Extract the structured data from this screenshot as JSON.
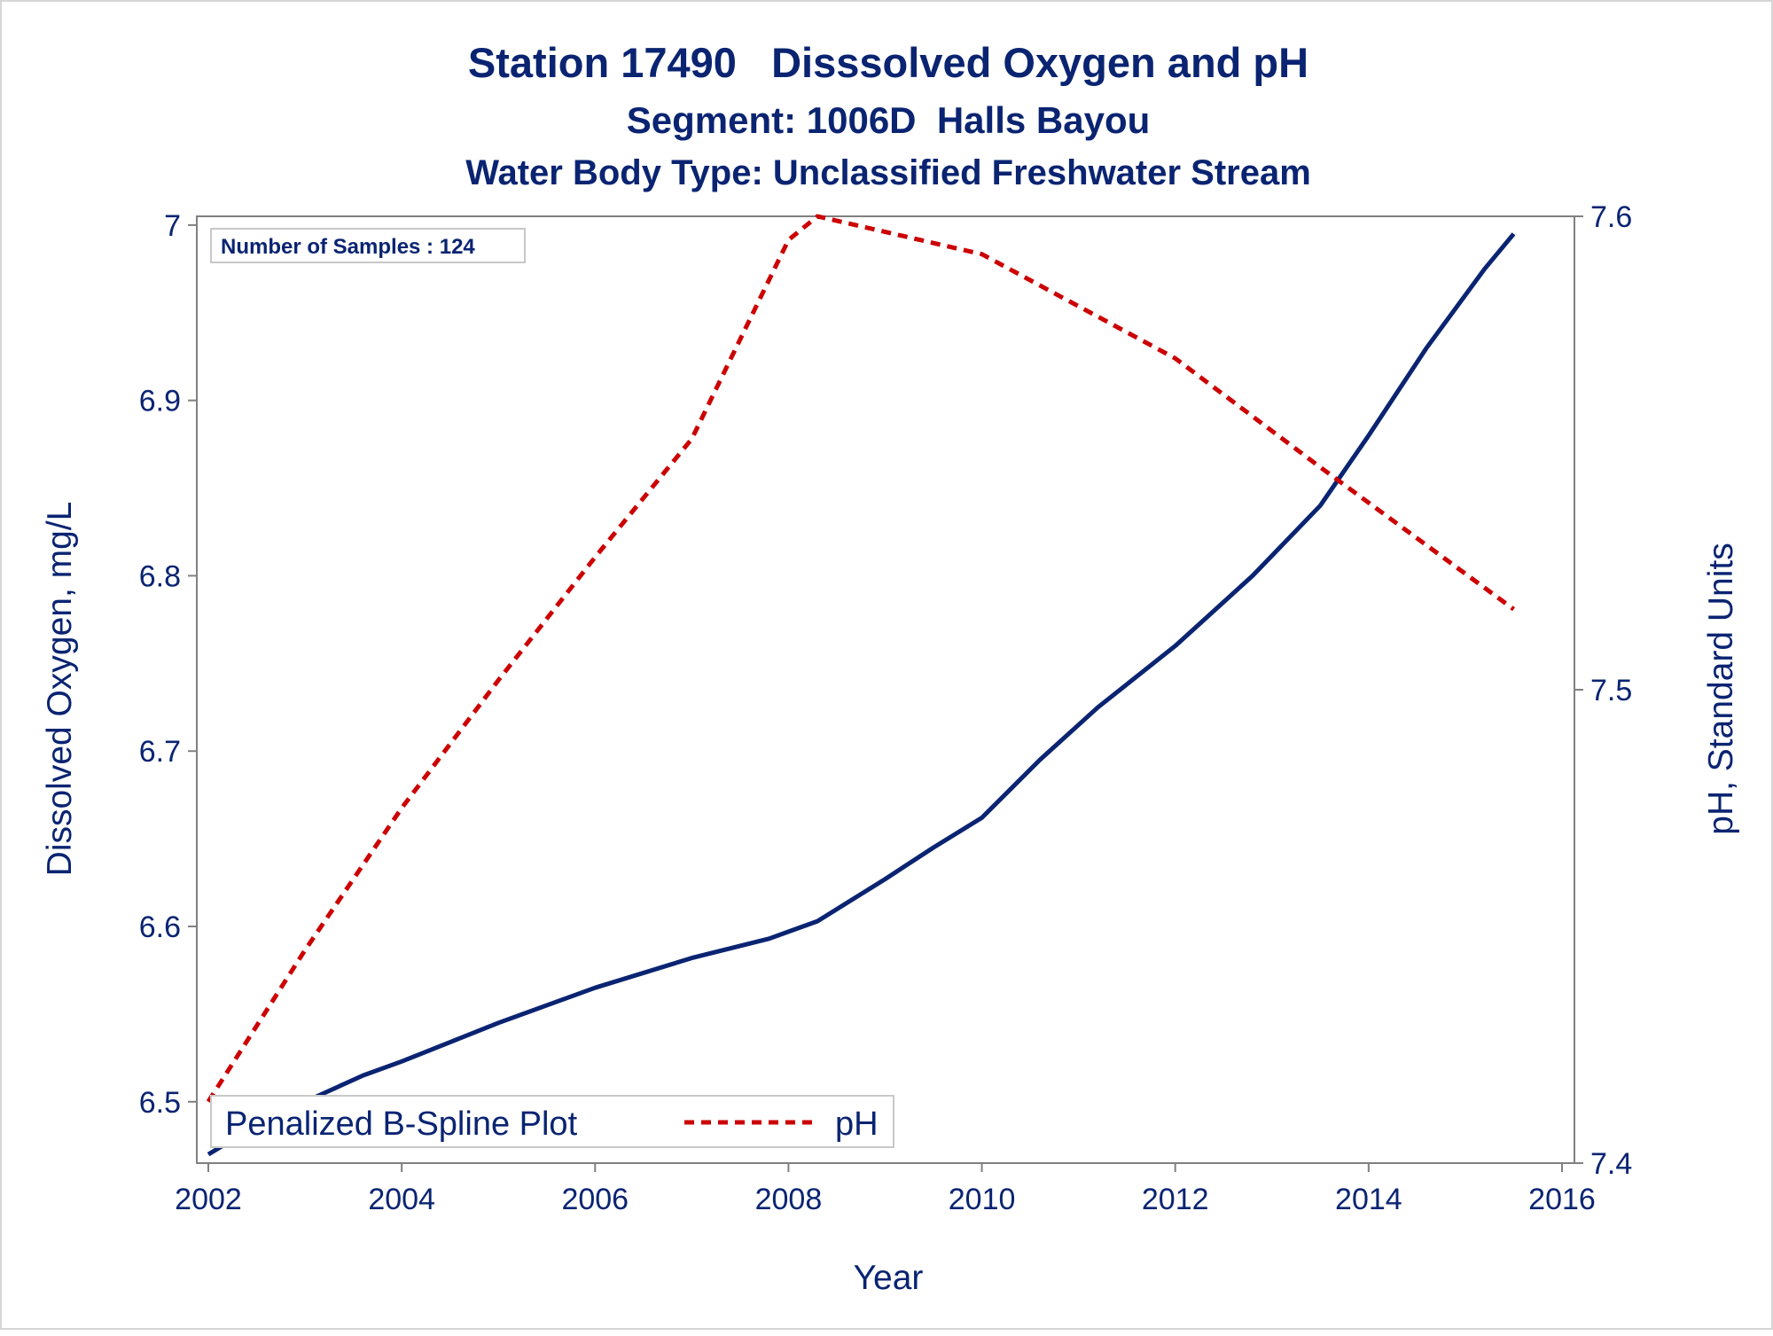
{
  "chart_data": {
    "type": "line",
    "title": "Station 17490   Disssolved Oxygen and pH",
    "subtitle": "Segment: 1006D  Halls Bayou",
    "subtitle2": "Water Body Type: Unclassified Freshwater Stream",
    "xlabel": "Year",
    "ylabel_left": "Dissolved Oxygen, mg/L",
    "ylabel_right": "pH, Standard Units",
    "xlim": [
      2002,
      2016
    ],
    "ylim_left": [
      6.465,
      7.005
    ],
    "ylim_right": [
      7.4,
      7.6
    ],
    "x_ticks": [
      "2002",
      "2004",
      "2006",
      "2008",
      "2010",
      "2012",
      "2014",
      "2016"
    ],
    "y_left_ticks": [
      "6.5",
      "6.6",
      "6.7",
      "6.8",
      "6.9",
      "7"
    ],
    "y_right_ticks": [
      "7.4",
      "7.5",
      "7.6"
    ],
    "grid": false,
    "inset_label": "Number of Samples : 124",
    "legend": {
      "position": "bottom-left",
      "title": "Penalized B-Spline Plot",
      "entries": [
        "pH"
      ]
    },
    "series": [
      {
        "name": "Dissolved Oxygen",
        "axis": "left",
        "color": "#0a2472",
        "style": "solid",
        "x": [
          2002.0,
          2002.6,
          2003.2,
          2003.6,
          2004.0,
          2005.0,
          2006.0,
          2007.0,
          2007.8,
          2008.3,
          2009.0,
          2009.5,
          2010.0,
          2010.6,
          2011.2,
          2012.0,
          2012.8,
          2013.5,
          2014.0,
          2014.6,
          2015.2,
          2015.5
        ],
        "values": [
          6.47,
          6.49,
          6.505,
          6.515,
          6.523,
          6.545,
          6.565,
          6.582,
          6.593,
          6.603,
          6.627,
          6.645,
          6.662,
          6.695,
          6.725,
          6.76,
          6.8,
          6.84,
          6.88,
          6.93,
          6.975,
          6.995
        ]
      },
      {
        "name": "pH",
        "axis": "right",
        "color": "#cc0000",
        "style": "dashed",
        "x": [
          2002.0,
          2003.0,
          2004.0,
          2005.0,
          2006.0,
          2007.0,
          2008.0,
          2008.3,
          2010.0,
          2012.0,
          2013.5,
          2015.5
        ],
        "values": [
          7.413,
          7.445,
          7.475,
          7.502,
          7.528,
          7.553,
          7.595,
          7.6,
          7.592,
          7.57,
          7.547,
          7.517
        ]
      }
    ]
  }
}
